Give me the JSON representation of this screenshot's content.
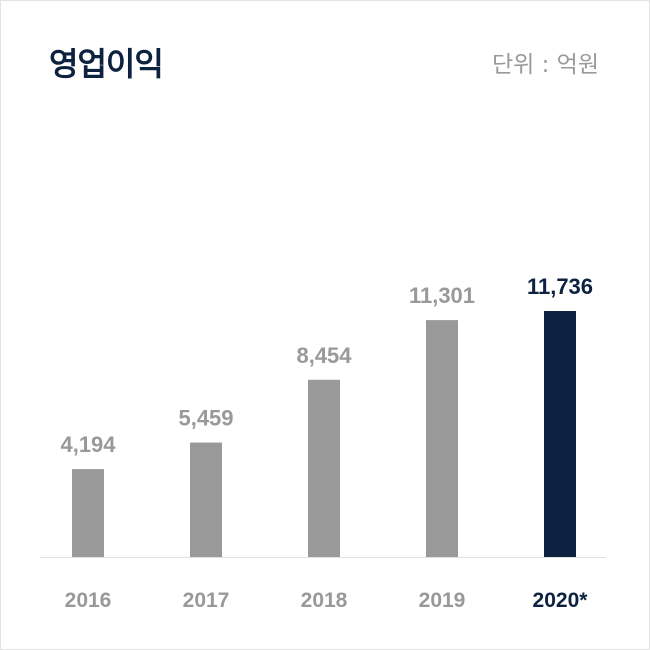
{
  "title": "영업이익",
  "unit_label": "단위 : 억원",
  "colors": {
    "bar": "#999999",
    "highlight": "#0d2240",
    "label": "#999999",
    "baseline": "#e0e0e0"
  },
  "chart_data": {
    "type": "bar",
    "title": "영업이익",
    "categories": [
      "2016",
      "2017",
      "2018",
      "2019",
      "2020*"
    ],
    "values": [
      4194,
      5459,
      8454,
      11301,
      11736
    ],
    "value_labels": [
      "4,194",
      "5,459",
      "8,454",
      "11,301",
      "11,736"
    ],
    "highlight_index": 4,
    "ylim": [
      0,
      12000
    ],
    "grid": false,
    "legend": "none"
  }
}
